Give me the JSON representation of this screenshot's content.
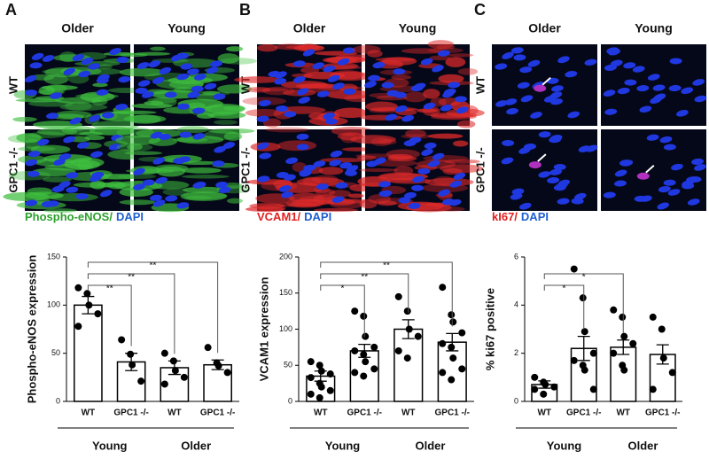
{
  "panels": [
    {
      "letter": "A",
      "columns": [
        "Older",
        "Young"
      ],
      "rows": [
        "WT",
        "GPC1 -/-"
      ],
      "stain": [
        {
          "text": "Phospho-eNOS/",
          "color": "#2ca02c"
        },
        {
          "text": "DAPI",
          "color": "#1f5fd0"
        }
      ],
      "signal": "#3fbf3f"
    },
    {
      "letter": "B",
      "columns": [
        "Older",
        "Young"
      ],
      "rows": [
        "WT",
        "GPC1 -/-"
      ],
      "stain": [
        {
          "text": "VCAM1/",
          "color": "#e02020"
        },
        {
          "text": "DAPI",
          "color": "#1f5fd0"
        }
      ],
      "signal": "#e02a2a"
    },
    {
      "letter": "C",
      "columns": [
        "Older",
        "Young"
      ],
      "rows": [
        "WT",
        "GPC1 -/-"
      ],
      "stain": [
        {
          "text": "kI67/",
          "color": "#e02020"
        },
        {
          "text": "DAPI",
          "color": "#1f5fd0"
        }
      ],
      "signal": "#b030c0"
    }
  ],
  "chart_data": [
    {
      "type": "bar",
      "ylabel": "Phospho-eNOS expression",
      "categories": [
        "WT",
        "GPC1 -/-",
        "WT",
        "GPC1 -/-"
      ],
      "groups": [
        "Young",
        "Older"
      ],
      "values": [
        100,
        41,
        35,
        38
      ],
      "errors": [
        9,
        9,
        7,
        5
      ],
      "points": [
        [
          118,
          112,
          100,
          91,
          78
        ],
        [
          64,
          49,
          38,
          21
        ],
        [
          50,
          42,
          32,
          25,
          18
        ],
        [
          56,
          40,
          37,
          30
        ]
      ],
      "ylim": [
        0,
        150
      ],
      "yticks": [
        0,
        50,
        100,
        150
      ],
      "significance": [
        {
          "from": 0,
          "to": 1,
          "label": "**"
        },
        {
          "from": 0,
          "to": 2,
          "label": "**"
        },
        {
          "from": 0,
          "to": 3,
          "label": "**"
        }
      ]
    },
    {
      "type": "bar",
      "ylabel": "VCAM1 expression",
      "categories": [
        "WT",
        "GPC1 -/-",
        "WT",
        "GPC1 -/-"
      ],
      "groups": [
        "Young",
        "Older"
      ],
      "values": [
        35,
        70,
        100,
        82
      ],
      "errors": [
        7,
        9,
        13,
        12
      ],
      "points": [
        [
          55,
          50,
          42,
          38,
          33,
          25,
          20,
          15,
          10,
          5
        ],
        [
          125,
          118,
          90,
          75,
          70,
          65,
          55,
          45,
          40,
          35
        ],
        [
          145,
          125,
          100,
          90,
          70,
          60
        ],
        [
          158,
          120,
          110,
          95,
          80,
          75,
          60,
          45,
          40,
          30
        ]
      ],
      "ylim": [
        0,
        200
      ],
      "yticks": [
        0,
        50,
        100,
        150,
        200
      ],
      "significance": [
        {
          "from": 0,
          "to": 1,
          "label": "*"
        },
        {
          "from": 0,
          "to": 2,
          "label": "**"
        },
        {
          "from": 0,
          "to": 3,
          "label": "**"
        }
      ]
    },
    {
      "type": "bar",
      "ylabel": "% ki67 positive",
      "categories": [
        "WT",
        "GPC1 -/-",
        "WT",
        "GPC1 -/-"
      ],
      "groups": [
        "Young",
        "Older"
      ],
      "values": [
        0.7,
        2.2,
        2.25,
        1.95
      ],
      "errors": [
        0.15,
        0.5,
        0.3,
        0.4
      ],
      "points": [
        [
          1.0,
          0.8,
          0.7,
          0.6,
          0.5,
          0.3
        ],
        [
          5.5,
          4.3,
          2.9,
          2.0,
          1.7,
          1.5,
          1.3,
          0.5
        ],
        [
          3.8,
          3.5,
          2.7,
          2.4,
          2.0,
          1.5,
          1.3
        ],
        [
          3.5,
          3.0,
          1.8,
          1.2,
          0.5
        ]
      ],
      "ylim": [
        0,
        6
      ],
      "yticks": [
        0,
        2,
        4,
        6
      ],
      "significance": [
        {
          "from": 0,
          "to": 1,
          "label": "*"
        },
        {
          "from": 0,
          "to": 2,
          "label": "*"
        }
      ]
    }
  ]
}
